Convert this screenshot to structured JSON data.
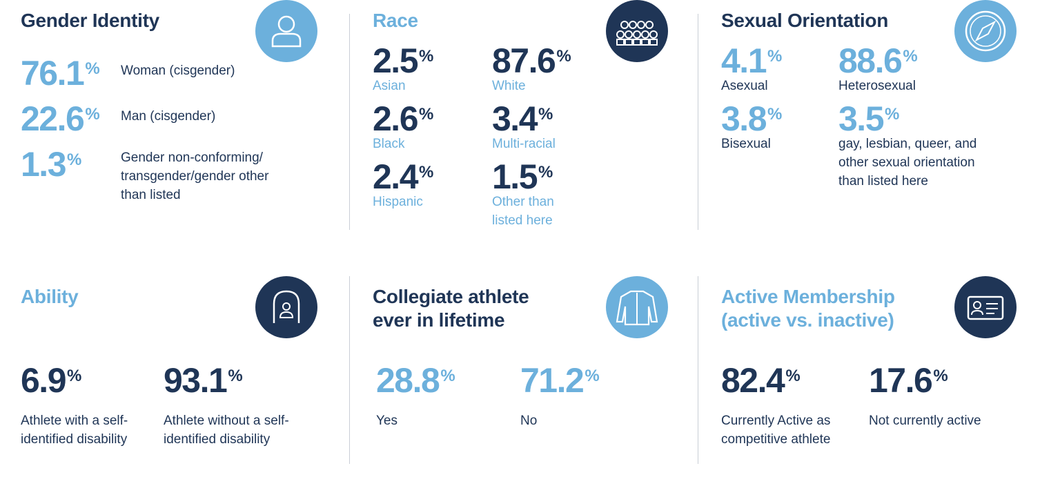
{
  "sections": [
    {
      "title": "Gender Identity",
      "stats": [
        {
          "value": 76.1,
          "unit": "%",
          "label": "Woman (cisgender)"
        },
        {
          "value": 22.6,
          "unit": "%",
          "label": "Man (cisgender)"
        },
        {
          "value": 1.3,
          "unit": "%",
          "label": "Gender non-conforming/ transgender/gender other than listed"
        }
      ]
    },
    {
      "title": "Race",
      "stats": [
        {
          "value": 2.5,
          "unit": "%",
          "label": "Asian"
        },
        {
          "value": 87.6,
          "unit": "%",
          "label": "White"
        },
        {
          "value": 2.6,
          "unit": "%",
          "label": "Black"
        },
        {
          "value": 3.4,
          "unit": "%",
          "label": "Multi-racial"
        },
        {
          "value": 2.4,
          "unit": "%",
          "label": "Hispanic"
        },
        {
          "value": 1.5,
          "unit": "%",
          "label": "Other than listed here"
        }
      ]
    },
    {
      "title": "Sexual Orientation",
      "stats": [
        {
          "value": 4.1,
          "unit": "%",
          "label": "Asexual"
        },
        {
          "value": 88.6,
          "unit": "%",
          "label": "Heterosexual"
        },
        {
          "value": 3.8,
          "unit": "%",
          "label": "Bisexual"
        },
        {
          "value": 3.5,
          "unit": "%",
          "label": "gay, lesbian, queer, and other sexual orientation than listed here"
        }
      ]
    },
    {
      "title": "Ability",
      "stats": [
        {
          "value": 6.9,
          "unit": "%",
          "label": "Athlete with a self-identified disability"
        },
        {
          "value": 93.1,
          "unit": "%",
          "label": "Athlete without a self-identified disability"
        }
      ]
    },
    {
      "title": "Collegiate athlete ever in lifetime",
      "stats": [
        {
          "value": 28.8,
          "unit": "%",
          "label": "Yes"
        },
        {
          "value": 71.2,
          "unit": "%",
          "label": "No"
        }
      ]
    },
    {
      "title": "Active Membership (active vs. inactive)",
      "stats": [
        {
          "value": 82.4,
          "unit": "%",
          "label": "Currently Active as competitive athlete"
        },
        {
          "value": 17.6,
          "unit": "%",
          "label": "Not currently active"
        }
      ]
    }
  ]
}
